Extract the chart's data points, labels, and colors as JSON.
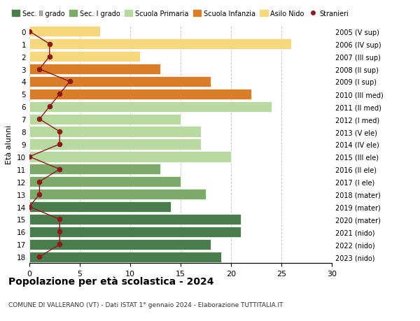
{
  "ages": [
    18,
    17,
    16,
    15,
    14,
    13,
    12,
    11,
    10,
    9,
    8,
    7,
    6,
    5,
    4,
    3,
    2,
    1,
    0
  ],
  "right_labels": [
    "2005 (V sup)",
    "2006 (IV sup)",
    "2007 (III sup)",
    "2008 (II sup)",
    "2009 (I sup)",
    "2010 (III med)",
    "2011 (II med)",
    "2012 (I med)",
    "2013 (V ele)",
    "2014 (IV ele)",
    "2015 (III ele)",
    "2016 (II ele)",
    "2017 (I ele)",
    "2018 (mater)",
    "2019 (mater)",
    "2020 (mater)",
    "2021 (nido)",
    "2022 (nido)",
    "2023 (nido)"
  ],
  "bar_values": [
    19,
    18,
    21,
    21,
    14,
    17.5,
    15,
    13,
    20,
    17,
    17,
    15,
    24,
    22,
    18,
    13,
    11,
    26,
    7
  ],
  "bar_colors": [
    "#4a7c4e",
    "#4a7c4e",
    "#4a7c4e",
    "#4a7c4e",
    "#4a7c4e",
    "#7daa6b",
    "#7daa6b",
    "#7daa6b",
    "#b8d9a0",
    "#b8d9a0",
    "#b8d9a0",
    "#b8d9a0",
    "#b8d9a0",
    "#d97d2a",
    "#d97d2a",
    "#d97d2a",
    "#f5d87e",
    "#f5d87e",
    "#f5d87e"
  ],
  "stranieri_values": [
    1,
    3,
    3,
    3,
    0,
    1,
    1,
    3,
    0,
    3,
    3,
    1,
    2,
    3,
    4,
    1,
    2,
    2,
    0
  ],
  "title": "Popolazione per età scolastica - 2024",
  "subtitle": "COMUNE DI VALLERANO (VT) - Dati ISTAT 1° gennaio 2024 - Elaborazione TUTTITALIA.IT",
  "xlabel": "",
  "ylabel": "Età alunni",
  "xlim": [
    0,
    30
  ],
  "legend_labels": [
    "Sec. II grado",
    "Sec. I grado",
    "Scuola Primaria",
    "Scuola Infanzia",
    "Asilo Nido",
    "Stranieri"
  ],
  "legend_colors": [
    "#4a7c4e",
    "#7daa6b",
    "#b8d9a0",
    "#d97d2a",
    "#f5d87e",
    "#8b1a1a"
  ],
  "grid_color": "#cccccc",
  "background_color": "#ffffff",
  "bar_edge_color": "#ffffff",
  "stranieri_line_color": "#8b1a1a",
  "stranieri_marker_color": "#8b1a1a"
}
